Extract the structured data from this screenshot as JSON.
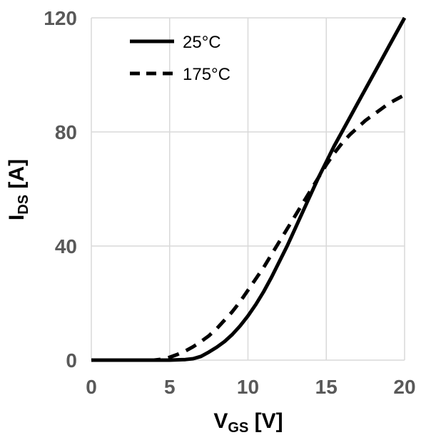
{
  "chart_data": {
    "type": "line",
    "xlabel": {
      "main": "V",
      "sub": "GS",
      "unit": " [V]"
    },
    "ylabel": {
      "main": "I",
      "sub": "DS",
      "unit": " [A]"
    },
    "xlim": [
      0,
      20
    ],
    "ylim": [
      0,
      120
    ],
    "xticks": [
      0,
      5,
      10,
      15,
      20
    ],
    "yticks": [
      0,
      40,
      80,
      120
    ],
    "grid": true,
    "legend_position": "top-left",
    "series": [
      {
        "name": "25°C",
        "style": "solid",
        "color": "#000000",
        "x": [
          0,
          2,
          4,
          5,
          6,
          6.5,
          7,
          7.5,
          8,
          8.5,
          9,
          9.5,
          10,
          10.5,
          11,
          11.5,
          12,
          12.5,
          13,
          13.5,
          14,
          14.5,
          15,
          15.5,
          16,
          16.5,
          17,
          17.5,
          18,
          18.5,
          19,
          19.5,
          20
        ],
        "y": [
          0,
          0,
          0,
          0,
          0.2,
          0.5,
          1.3,
          2.8,
          4.5,
          6.5,
          9,
          12,
          15.5,
          19.5,
          24,
          29,
          34.5,
          40,
          46,
          52,
          58,
          64,
          69.5,
          75,
          80,
          85,
          90,
          95,
          100,
          105,
          110,
          115,
          120
        ]
      },
      {
        "name": "175°C",
        "style": "dashed",
        "color": "#000000",
        "x": [
          0,
          2,
          4,
          4.5,
          5,
          5.5,
          6,
          6.5,
          7,
          7.5,
          8,
          8.5,
          9,
          9.5,
          10,
          10.5,
          11,
          11.5,
          12,
          12.5,
          13,
          13.5,
          14,
          14.5,
          15,
          15.5,
          16,
          16.5,
          17,
          17.5,
          18,
          18.5,
          19,
          19.5,
          20
        ],
        "y": [
          0,
          0,
          0,
          0.3,
          1,
          2,
          3.2,
          4.7,
          6.5,
          8.5,
          11,
          14,
          17,
          20.5,
          24.5,
          28.5,
          32.5,
          37,
          41.5,
          46,
          50.5,
          55,
          59.5,
          64,
          68.5,
          72.5,
          76,
          79,
          81.5,
          84,
          86,
          88,
          90,
          91.5,
          93
        ]
      }
    ]
  }
}
